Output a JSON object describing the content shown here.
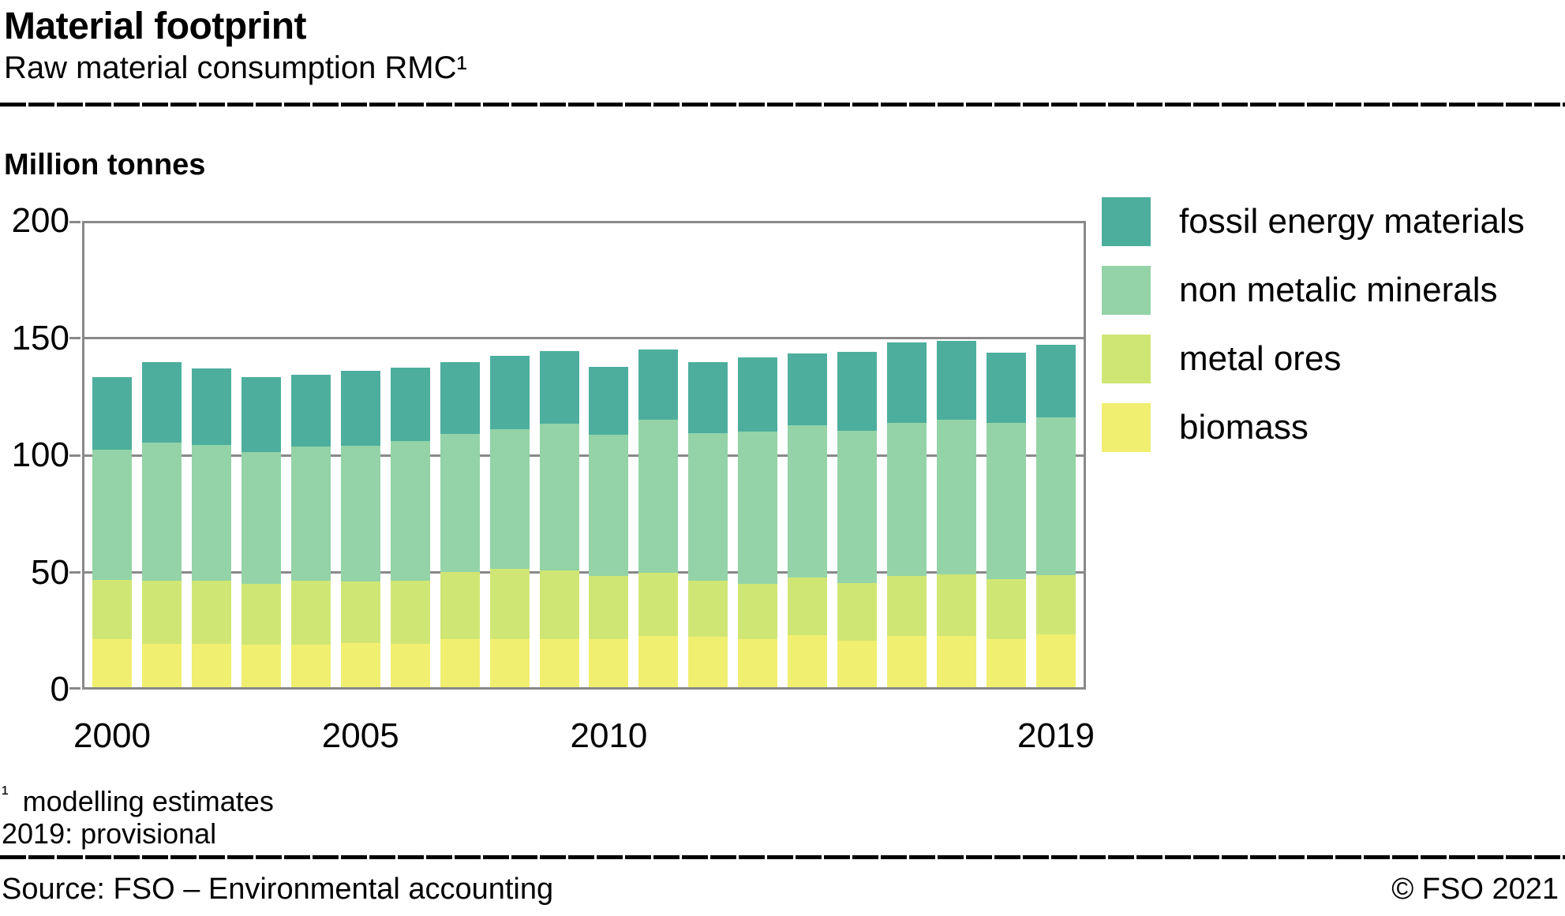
{
  "header": {
    "title": "Material footprint",
    "subtitle": "Raw material consumption RMC¹"
  },
  "axis_unit_label": "Million tonnes",
  "chart_data": {
    "type": "bar",
    "stacked": true,
    "title": "Material footprint",
    "ylabel": "Million tonnes",
    "ylim": [
      0,
      200
    ],
    "yticks": [
      0,
      50,
      100,
      150,
      200
    ],
    "grid": true,
    "legend_position": "right",
    "categories": [
      "2000",
      "2001",
      "2002",
      "2003",
      "2004",
      "2005",
      "2006",
      "2007",
      "2008",
      "2009",
      "2010",
      "2011",
      "2012",
      "2013",
      "2014",
      "2015",
      "2016",
      "2017",
      "2018",
      "2019"
    ],
    "xticks": [
      {
        "label": "2000",
        "index": 0
      },
      {
        "label": "2005",
        "index": 5
      },
      {
        "label": "2010",
        "index": 10
      },
      {
        "label": "2019",
        "index": 19
      }
    ],
    "series": [
      {
        "name": "biomass",
        "color": "#f0ef70",
        "values": [
          21.7,
          19.5,
          19.7,
          19.1,
          19.1,
          19.8,
          19.5,
          21.7,
          21.7,
          21.7,
          21.5,
          23.0,
          22.4,
          21.5,
          23.4,
          20.8,
          22.8,
          22.8,
          21.5,
          23.5
        ]
      },
      {
        "name": "metal ores",
        "color": "#d0e674",
        "values": [
          25.2,
          27.0,
          26.9,
          26.1,
          27.5,
          26.3,
          27.1,
          28.4,
          29.7,
          29.0,
          27.0,
          26.8,
          24.1,
          23.7,
          24.4,
          24.5,
          25.6,
          26.3,
          25.5,
          25.3
        ]
      },
      {
        "name": "non metalic minerals",
        "color": "#93d3a7",
        "values": [
          55.6,
          58.9,
          57.8,
          56.0,
          57.1,
          57.8,
          59.6,
          59.0,
          59.7,
          62.8,
          60.1,
          65.5,
          63.0,
          65.0,
          64.9,
          65.0,
          65.3,
          65.9,
          66.7,
          67.3
        ]
      },
      {
        "name": "fossil energy materials",
        "color": "#4dae9e",
        "values": [
          31.0,
          34.3,
          32.7,
          32.0,
          30.8,
          32.3,
          31.2,
          30.8,
          31.4,
          31.1,
          29.2,
          29.8,
          30.2,
          31.4,
          30.9,
          33.9,
          34.3,
          33.9,
          30.0,
          31.2
        ]
      }
    ],
    "legend_order": [
      "fossil energy materials",
      "non metalic minerals",
      "metal ores",
      "biomass"
    ]
  },
  "footnotes": {
    "marker": "¹",
    "line1": "modelling estimates",
    "line2": "2019: provisional"
  },
  "footer": {
    "source": "Source: FSO – Environmental accounting",
    "copyright": "© FSO 2021"
  },
  "colors": {
    "grid": "#898989",
    "rule": "#000000"
  }
}
